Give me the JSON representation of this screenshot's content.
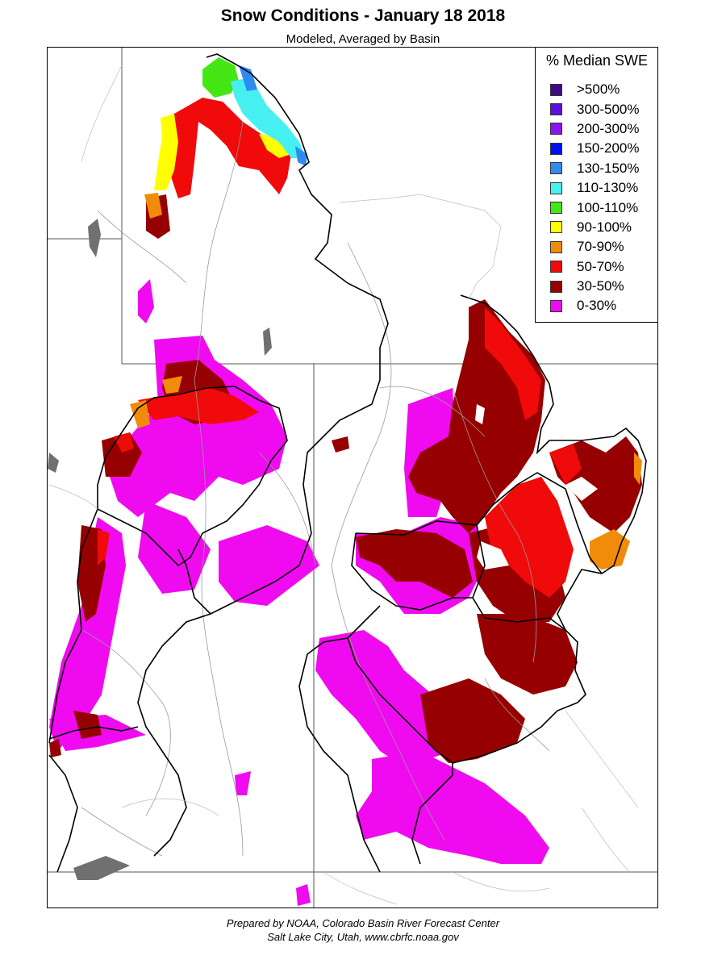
{
  "title": "Snow Conditions - January 18 2018",
  "subtitle": "Modeled, Averaged by Basin",
  "legend": {
    "title": "% Median SWE",
    "items": [
      {
        "label": ">500%",
        "color": "#3d0a8c"
      },
      {
        "label": "300-500%",
        "color": "#5a10e0"
      },
      {
        "label": "200-300%",
        "color": "#8c14f0"
      },
      {
        "label": "150-200%",
        "color": "#0010f0"
      },
      {
        "label": "130-150%",
        "color": "#2e8cf0"
      },
      {
        "label": "110-130%",
        "color": "#46f0f0"
      },
      {
        "label": "100-110%",
        "color": "#44e614"
      },
      {
        "label": "90-100%",
        "color": "#ffff00"
      },
      {
        "label": "70-90%",
        "color": "#f08c0a"
      },
      {
        "label": "50-70%",
        "color": "#f00a0a"
      },
      {
        "label": "30-50%",
        "color": "#960000"
      },
      {
        "label": "0-30%",
        "color": "#f00af0"
      }
    ]
  },
  "credits": {
    "line1": "Prepared by NOAA, Colorado Basin River Forecast Center",
    "line2": "Salt Lake City, Utah, www.cbrfc.noaa.gov"
  }
}
